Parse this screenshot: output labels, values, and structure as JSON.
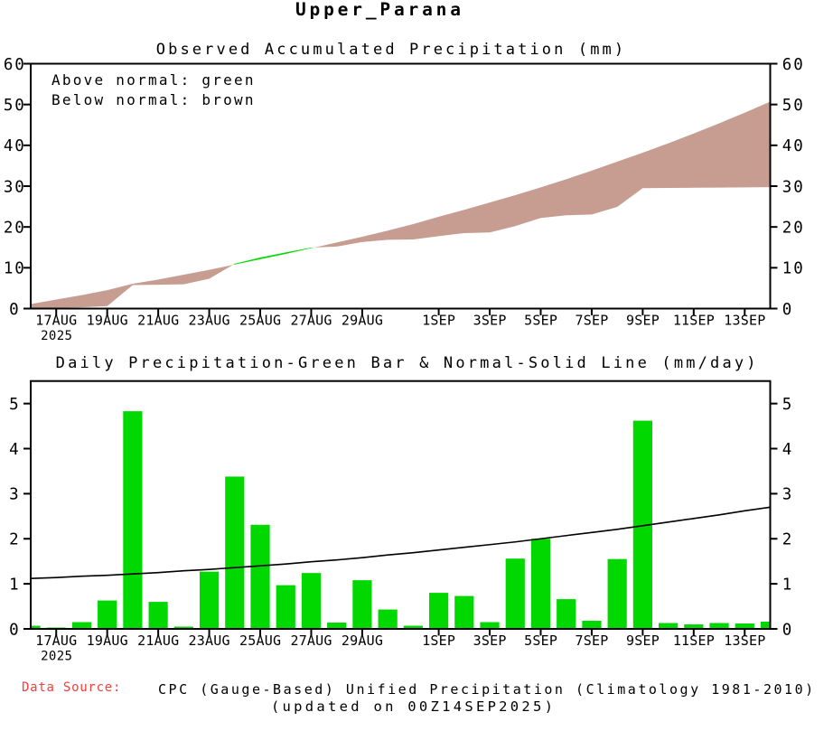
{
  "page": {
    "title": "Upper_Parana"
  },
  "colors": {
    "above_normal_green": "#00d800",
    "below_normal_brown": "#c79d92",
    "source_label_red": "#fa3c3c",
    "axis_black": "#000000",
    "background": "#ffffff"
  },
  "top_chart": {
    "title": "Observed Accumulated Precipitation (mm)",
    "legend_above": "Above normal: green",
    "legend_below": "Below normal: brown",
    "y_ticks": [
      0,
      10,
      20,
      30,
      40,
      50,
      60
    ],
    "y_range": [
      0,
      60
    ]
  },
  "bottom_chart": {
    "title": "Daily Precipitation-Green Bar & Normal-Solid Line (mm/day)",
    "y_ticks": [
      0,
      1,
      2,
      3,
      4,
      5
    ],
    "y_range": [
      0,
      5.5
    ]
  },
  "x_axis": {
    "start_date": "16AUG2025",
    "end_date": "14SEP2025",
    "year_label": "2025",
    "ticks": [
      {
        "day": 1,
        "label": "17AUG"
      },
      {
        "day": 3,
        "label": "19AUG"
      },
      {
        "day": 5,
        "label": "21AUG"
      },
      {
        "day": 7,
        "label": "23AUG"
      },
      {
        "day": 9,
        "label": "25AUG"
      },
      {
        "day": 11,
        "label": "27AUG"
      },
      {
        "day": 13,
        "label": "29AUG"
      },
      {
        "day": 16,
        "label": "1SEP"
      },
      {
        "day": 18,
        "label": "3SEP"
      },
      {
        "day": 20,
        "label": "5SEP"
      },
      {
        "day": 22,
        "label": "7SEP"
      },
      {
        "day": 24,
        "label": "9SEP"
      },
      {
        "day": 26,
        "label": "11SEP"
      },
      {
        "day": 28,
        "label": "13SEP"
      }
    ]
  },
  "footer": {
    "source_label": "Data Source:",
    "source_text": "CPC (Gauge-Based) Unified Precipitation (Climatology 1981-2010)",
    "updated": "(updated on 00Z14SEP2025)"
  },
  "chart_data": [
    {
      "type": "area",
      "title": "Observed Accumulated Precipitation (mm)",
      "xlabel": "",
      "ylabel": "mm",
      "ylim": [
        0,
        60
      ],
      "x_dates": [
        "16AUG",
        "17AUG",
        "18AUG",
        "19AUG",
        "20AUG",
        "21AUG",
        "22AUG",
        "23AUG",
        "24AUG",
        "25AUG",
        "26AUG",
        "27AUG",
        "28AUG",
        "29AUG",
        "30AUG",
        "31AUG",
        "1SEP",
        "2SEP",
        "3SEP",
        "4SEP",
        "5SEP",
        "6SEP",
        "7SEP",
        "8SEP",
        "9SEP",
        "10SEP",
        "11SEP",
        "12SEP",
        "13SEP",
        "14SEP"
      ],
      "series": [
        {
          "name": "observed_accumulated",
          "values": [
            0.1,
            0.2,
            0.3,
            0.6,
            5.75,
            5.85,
            5.95,
            7.3,
            10.98,
            12.5,
            13.75,
            14.95,
            15.2,
            16.3,
            16.85,
            16.95,
            17.75,
            18.5,
            18.65,
            20.2,
            22.2,
            22.85,
            23.05,
            24.9,
            29.5,
            29.55,
            29.6,
            29.65,
            29.7,
            29.75
          ]
        },
        {
          "name": "normal_accumulated",
          "values": [
            1.1,
            2.2,
            3.3,
            4.5,
            6.1,
            7.1,
            8.3,
            9.5,
            10.8,
            12.1,
            13.4,
            14.8,
            16.2,
            17.6,
            19.1,
            20.7,
            22.5,
            24.2,
            26.0,
            27.8,
            29.7,
            31.7,
            33.8,
            36.0,
            38.2,
            40.5,
            42.9,
            45.4,
            48.0,
            50.7
          ]
        }
      ],
      "fill_rule": "green where observed above normal, brown where observed below normal",
      "legend_position": "top-left",
      "grid": false
    },
    {
      "type": "bar+line",
      "title": "Daily Precipitation-Green Bar & Normal-Solid Line (mm/day)",
      "xlabel": "",
      "ylabel": "mm/day",
      "ylim": [
        0,
        5.5
      ],
      "x_dates": [
        "16AUG",
        "17AUG",
        "18AUG",
        "19AUG",
        "20AUG",
        "21AUG",
        "22AUG",
        "23AUG",
        "24AUG",
        "25AUG",
        "26AUG",
        "27AUG",
        "28AUG",
        "29AUG",
        "30AUG",
        "31AUG",
        "1SEP",
        "2SEP",
        "3SEP",
        "4SEP",
        "5SEP",
        "6SEP",
        "7SEP",
        "8SEP",
        "9SEP",
        "10SEP",
        "11SEP",
        "12SEP",
        "13SEP",
        "14SEP"
      ],
      "series": [
        {
          "name": "daily_precipitation_bars",
          "values": [
            0.07,
            0.03,
            0.15,
            0.63,
            4.83,
            0.6,
            0.05,
            1.27,
            3.38,
            2.31,
            0.97,
            1.24,
            0.14,
            1.08,
            0.43,
            0.07,
            0.8,
            0.73,
            0.15,
            1.56,
            2.0,
            0.66,
            0.18,
            1.55,
            4.62,
            0.13,
            0.1,
            0.13,
            0.12,
            0.16
          ]
        },
        {
          "name": "daily_normal_line",
          "values": [
            1.12,
            1.14,
            1.17,
            1.19,
            1.22,
            1.25,
            1.29,
            1.32,
            1.36,
            1.4,
            1.44,
            1.49,
            1.53,
            1.58,
            1.64,
            1.69,
            1.75,
            1.81,
            1.87,
            1.93,
            2.0,
            2.07,
            2.14,
            2.21,
            2.29,
            2.37,
            2.45,
            2.53,
            2.62,
            2.7
          ]
        }
      ],
      "grid": false
    }
  ]
}
